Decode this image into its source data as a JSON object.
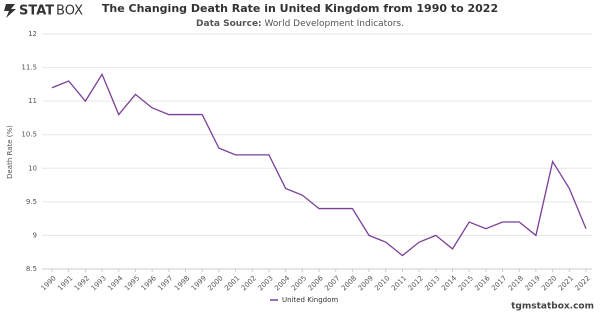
{
  "branding": {
    "logo_bold": "STAT",
    "logo_light": "BOX",
    "footer": "tgmstatbox.com"
  },
  "chart_data": {
    "type": "line",
    "title": "The Changing Death Rate in United Kingdom from 1990 to 2022",
    "subtitle_label": "Data Source:",
    "subtitle": "World Development Indicators.",
    "y_label": "Death Rate (%)",
    "x": [
      1990,
      1991,
      1992,
      1993,
      1994,
      1995,
      1996,
      1997,
      1998,
      1999,
      2000,
      2001,
      2002,
      2003,
      2004,
      2005,
      2006,
      2007,
      2008,
      2009,
      2010,
      2011,
      2012,
      2013,
      2014,
      2015,
      2016,
      2017,
      2018,
      2019,
      2020,
      2021,
      2022
    ],
    "series": [
      {
        "name": "United Kingdom",
        "color": "#7b3f98",
        "values": [
          11.2,
          11.3,
          11.0,
          11.4,
          10.8,
          11.1,
          10.9,
          10.8,
          10.8,
          10.8,
          10.3,
          10.2,
          10.2,
          10.2,
          9.7,
          9.6,
          9.4,
          9.4,
          9.4,
          9.0,
          8.9,
          8.7,
          8.9,
          9.0,
          8.8,
          9.2,
          9.1,
          9.2,
          9.2,
          9.0,
          10.1,
          9.7,
          9.1
        ]
      }
    ],
    "xlim": [
      1990,
      2022
    ],
    "xticks": [
      1990,
      1991,
      1992,
      1993,
      1994,
      1995,
      1996,
      1997,
      1998,
      1999,
      2000,
      2001,
      2002,
      2003,
      2004,
      2005,
      2006,
      2007,
      2008,
      2009,
      2010,
      2011,
      2012,
      2013,
      2014,
      2015,
      2016,
      2017,
      2018,
      2019,
      2020,
      2021,
      2022
    ],
    "ylim": [
      8.5,
      12
    ],
    "yticks": [
      8.5,
      9,
      9.5,
      10,
      10.5,
      11,
      11.5,
      12
    ],
    "grid": true
  }
}
